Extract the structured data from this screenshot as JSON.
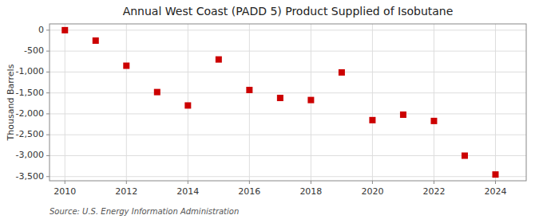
{
  "chart_data": {
    "type": "scatter",
    "title": "Annual West Coast (PADD 5) Product Supplied of Isobutane",
    "ylabel": "Thousand Barrels",
    "source": "Source: U.S. Energy Information Administration",
    "x": [
      2010,
      2011,
      2012,
      2013,
      2014,
      2015,
      2016,
      2017,
      2018,
      2019,
      2020,
      2021,
      2022,
      2023,
      2024
    ],
    "values": [
      0,
      -250,
      -850,
      -1480,
      -1800,
      -700,
      -1430,
      -1620,
      -1670,
      -1010,
      -2150,
      -2020,
      -2170,
      -3000,
      -3450
    ],
    "color": "#cc0000",
    "marker": "square",
    "xlim": [
      2009.5,
      2025.0
    ],
    "ylim": [
      -3600,
      150
    ],
    "xticks": [
      2010,
      2012,
      2014,
      2016,
      2018,
      2020,
      2022,
      2024
    ],
    "yticks": [
      0,
      -500,
      {
        "value": -1000,
        "label": "-1,000"
      },
      {
        "value": -1500,
        "label": "-1,500"
      },
      {
        "value": -2000,
        "label": "-2,000"
      },
      {
        "value": -2500,
        "label": "-2,500"
      },
      {
        "value": -3000,
        "label": "-3,000"
      },
      {
        "value": -3500,
        "label": "-3,500"
      }
    ],
    "grid": true
  }
}
